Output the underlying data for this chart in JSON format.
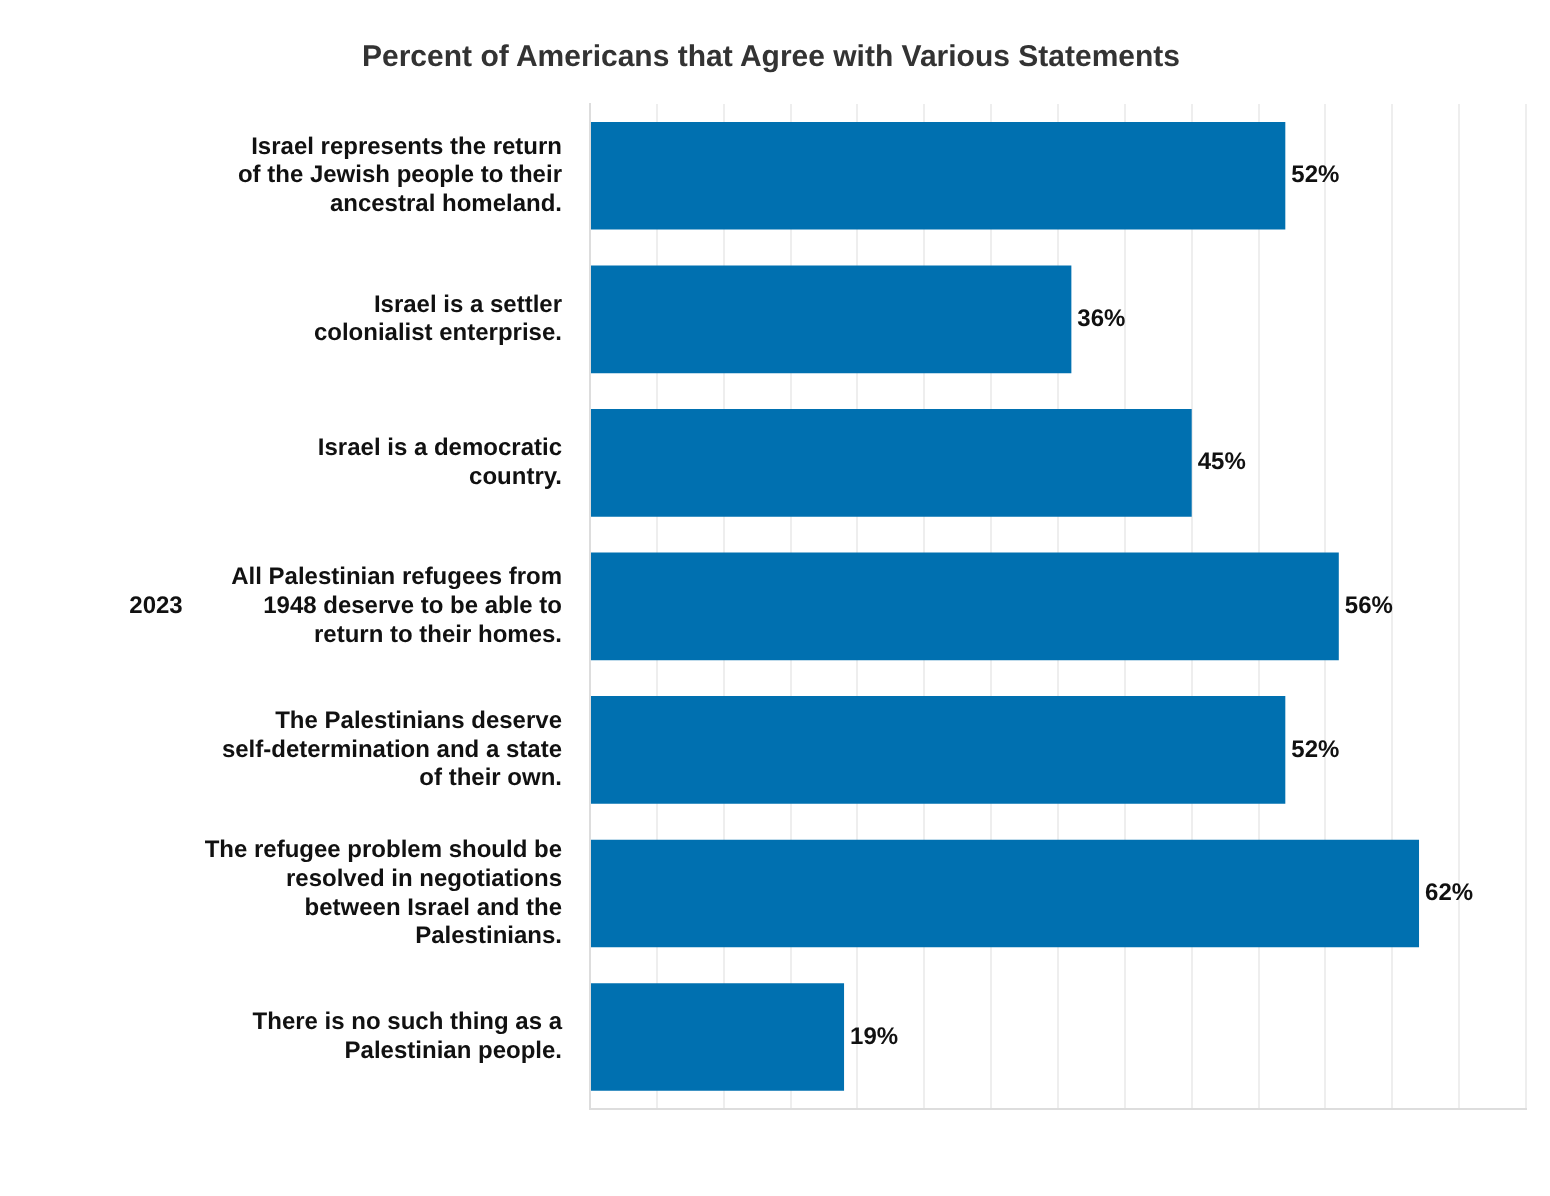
{
  "chart_data": {
    "type": "bar",
    "orientation": "horizontal",
    "title": "Percent of Americans that Agree with Various Statements",
    "categories": [
      "Israel represents the return of the Jewish people to their ancestral homeland.",
      "Israel is a settler colonialist enterprise.",
      "Israel is a democratic country.",
      "All Palestinian refugees from 1948 deserve to be able to return to their homes.",
      "The Palestinians deserve self-determination and a state of their own.",
      "The refugee problem should be resolved in negotiations between Israel and the Palestinians.",
      "There is no such thing as a Palestinian people."
    ],
    "values": [
      52,
      36,
      45,
      56,
      52,
      62,
      19
    ],
    "value_labels": [
      "52%",
      "36%",
      "45%",
      "56%",
      "52%",
      "62%",
      "19%"
    ],
    "color": "#0070b0",
    "xlim": [
      0,
      70
    ],
    "xticks": [
      {
        "value": 0,
        "label": null
      },
      {
        "value": 5,
        "label": null
      },
      {
        "value": 10,
        "label": null
      },
      {
        "value": 15,
        "label": null
      },
      {
        "value": 20,
        "label": null
      },
      {
        "value": 25,
        "label": null
      },
      {
        "value": 30,
        "label": null
      },
      {
        "value": 35,
        "label": null
      },
      {
        "value": 40,
        "label": null
      },
      {
        "value": 45,
        "label": null
      },
      {
        "value": 50,
        "label": null
      },
      {
        "value": 55,
        "label": null
      },
      {
        "value": 60,
        "label": null
      },
      {
        "value": 65,
        "label": null
      },
      {
        "value": 70,
        "label": null
      }
    ],
    "grid": "x",
    "annotations": [
      "2023"
    ]
  }
}
